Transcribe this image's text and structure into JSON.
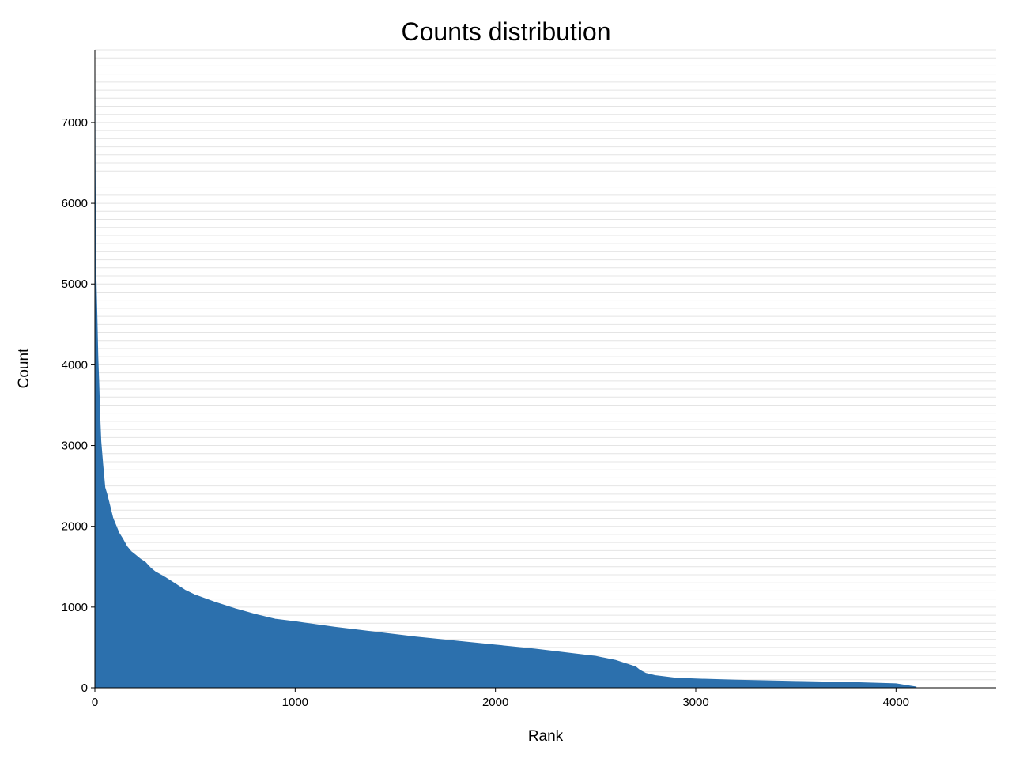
{
  "chart_data": {
    "type": "area",
    "title": "Counts distribution",
    "xlabel": "Rank",
    "ylabel": "Count",
    "xlim": [
      0,
      4500
    ],
    "ylim": [
      0,
      7900
    ],
    "x_ticks": [
      0,
      1000,
      2000,
      3000,
      4000
    ],
    "y_ticks": [
      0,
      1000,
      2000,
      3000,
      4000,
      5000,
      6000,
      7000
    ],
    "y_minor_gridline_step": 100,
    "grid": "horizontal",
    "legend": "none",
    "fill_color": "#2c70ad",
    "series": [
      {
        "x": [
          0,
          1,
          3,
          6,
          10,
          15,
          20,
          25,
          30,
          40,
          50,
          60,
          70,
          80,
          90,
          100,
          120,
          140,
          160,
          180,
          200,
          230,
          250,
          280,
          300,
          350,
          400,
          450,
          500,
          600,
          700,
          800,
          900,
          1000,
          1200,
          1400,
          1600,
          1800,
          2000,
          2200,
          2400,
          2500,
          2600,
          2650,
          2700,
          2720,
          2750,
          2800,
          2900,
          3000,
          3200,
          3500,
          3800,
          4000,
          4050,
          4100
        ],
        "y": [
          7650,
          6550,
          5500,
          5050,
          4650,
          4100,
          3750,
          3350,
          3050,
          2750,
          2480,
          2400,
          2300,
          2200,
          2100,
          2040,
          1920,
          1840,
          1750,
          1690,
          1650,
          1590,
          1560,
          1480,
          1440,
          1370,
          1290,
          1210,
          1150,
          1060,
          980,
          910,
          850,
          820,
          750,
          690,
          630,
          580,
          530,
          480,
          420,
          390,
          340,
          300,
          260,
          220,
          180,
          150,
          120,
          110,
          95,
          80,
          65,
          50,
          30,
          10
        ]
      }
    ]
  }
}
